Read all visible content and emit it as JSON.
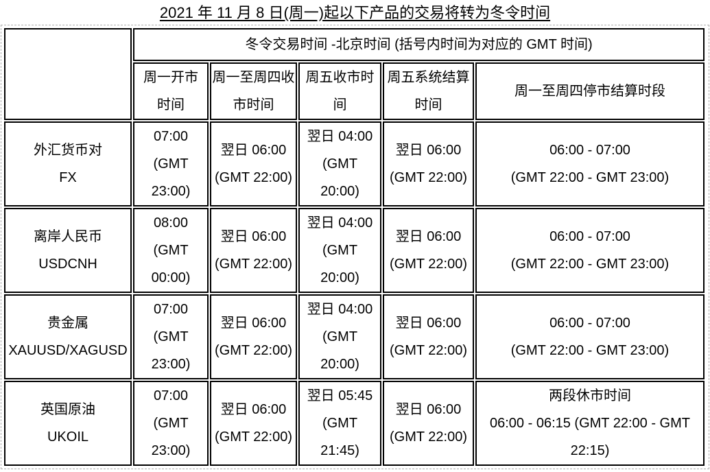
{
  "page": {
    "title": "2021 年 11 月 8 日(周一)起以下产品的交易将转为冬令时间"
  },
  "colors": {
    "background": "#ffffff",
    "text": "#000000",
    "cell_border": "#000000",
    "dashed_outline": "#adadad"
  },
  "table": {
    "span_header": "冬令交易时间 -北京时间 (括号内时间为对应的 GMT 时间)",
    "columns": [
      "周一开市\n时间",
      "周一至周四收\n市时间",
      "周五收市时\n间",
      "周五系统结算\n时间",
      "周一至周四停市结算时段"
    ],
    "rows": [
      {
        "product": "外汇货币对\nFX",
        "open_monday": "07:00\n(GMT\n23:00)",
        "close_mon_thu": "翌日 06:00\n(GMT 22:00)",
        "close_friday": "翌日 04:00\n(GMT\n20:00)",
        "settle_friday": "翌日 06:00\n(GMT 22:00)",
        "halt_mon_thu": "06:00 - 07:00\n(GMT 22:00 - GMT 23:00)"
      },
      {
        "product": "离岸人民币\nUSDCNH",
        "open_monday": "08:00\n(GMT\n00:00)",
        "close_mon_thu": "翌日 06:00\n(GMT 22:00)",
        "close_friday": "翌日 04:00\n(GMT\n20:00)",
        "settle_friday": "翌日 06:00\n(GMT 22:00)",
        "halt_mon_thu": "06:00 - 07:00\n(GMT 22:00 - GMT 23:00)"
      },
      {
        "product": "贵金属\nXAUUSD/XAGUSD",
        "open_monday": "07:00\n(GMT\n23:00)",
        "close_mon_thu": "翌日 06:00\n(GMT 22:00)",
        "close_friday": "翌日 04:00\n(GMT\n20:00)",
        "settle_friday": "翌日 06:00\n(GMT 22:00)",
        "halt_mon_thu": "06:00 - 07:00\n(GMT 22:00 - GMT 23:00)"
      },
      {
        "product": "英国原油\nUKOIL",
        "open_monday": "07:00\n(GMT\n23:00)",
        "close_mon_thu": "翌日 06:00\n(GMT 22:00)",
        "close_friday": "翌日 05:45\n(GMT\n21:45)",
        "settle_friday": "翌日 06:00\n(GMT 22:00)",
        "halt_mon_thu": "两段休市时间\n06:00 - 06:15 (GMT 22:00 - GMT\n22:15)"
      }
    ]
  }
}
